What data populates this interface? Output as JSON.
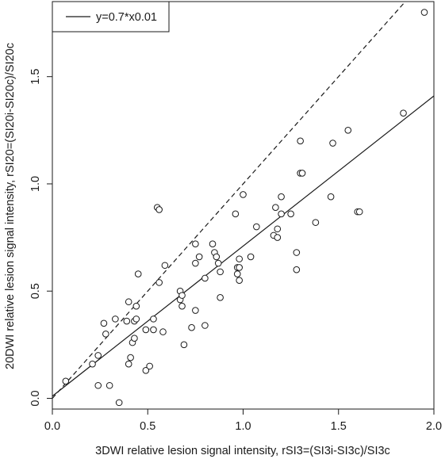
{
  "chart_data": {
    "type": "scatter",
    "title": "",
    "xlabel": "3DWI relative lesion signal intensity, rSI3=(SI3i-SI3c)/SI3c",
    "ylabel": "20DWI relative lesion signal intensity, rSI20=(SI20i-SI20c)/SI20c",
    "xlim": [
      0.0,
      2.0
    ],
    "ylim": [
      -0.05,
      1.85
    ],
    "x_ticks": [
      "0.0",
      "0.5",
      "1.0",
      "1.5",
      "2.0"
    ],
    "y_ticks": [
      "0.0",
      "0.5",
      "1.0",
      "1.5"
    ],
    "grid": false,
    "legend": {
      "placement": "top-left",
      "entries": [
        {
          "label": "y=0.7*x0.01",
          "line_style": "solid"
        }
      ]
    },
    "lines": [
      {
        "style": "solid",
        "slope": 0.7,
        "intercept": 0.01
      },
      {
        "style": "dashed",
        "slope": 1.0,
        "intercept": 0.0
      }
    ],
    "points": [
      {
        "x": 0.07,
        "y": 0.08
      },
      {
        "x": 0.21,
        "y": 0.16
      },
      {
        "x": 0.24,
        "y": 0.2
      },
      {
        "x": 0.24,
        "y": 0.06
      },
      {
        "x": 0.27,
        "y": 0.35
      },
      {
        "x": 0.28,
        "y": 0.3
      },
      {
        "x": 0.3,
        "y": 0.06
      },
      {
        "x": 0.33,
        "y": 0.37
      },
      {
        "x": 0.35,
        "y": -0.02
      },
      {
        "x": 0.39,
        "y": 0.36
      },
      {
        "x": 0.4,
        "y": 0.45
      },
      {
        "x": 0.4,
        "y": 0.16
      },
      {
        "x": 0.41,
        "y": 0.19
      },
      {
        "x": 0.42,
        "y": 0.26
      },
      {
        "x": 0.43,
        "y": 0.28
      },
      {
        "x": 0.43,
        "y": 0.36
      },
      {
        "x": 0.44,
        "y": 0.37
      },
      {
        "x": 0.44,
        "y": 0.43
      },
      {
        "x": 0.45,
        "y": 0.58
      },
      {
        "x": 0.49,
        "y": 0.32
      },
      {
        "x": 0.49,
        "y": 0.13
      },
      {
        "x": 0.51,
        "y": 0.15
      },
      {
        "x": 0.53,
        "y": 0.32
      },
      {
        "x": 0.53,
        "y": 0.37
      },
      {
        "x": 0.55,
        "y": 0.89
      },
      {
        "x": 0.56,
        "y": 0.88
      },
      {
        "x": 0.56,
        "y": 0.54
      },
      {
        "x": 0.58,
        "y": 0.31
      },
      {
        "x": 0.59,
        "y": 0.62
      },
      {
        "x": 0.67,
        "y": 0.46
      },
      {
        "x": 0.67,
        "y": 0.5
      },
      {
        "x": 0.68,
        "y": 0.48
      },
      {
        "x": 0.68,
        "y": 0.43
      },
      {
        "x": 0.69,
        "y": 0.25
      },
      {
        "x": 0.73,
        "y": 0.33
      },
      {
        "x": 0.75,
        "y": 0.41
      },
      {
        "x": 0.75,
        "y": 0.72
      },
      {
        "x": 0.75,
        "y": 0.63
      },
      {
        "x": 0.77,
        "y": 0.66
      },
      {
        "x": 0.8,
        "y": 0.34
      },
      {
        "x": 0.8,
        "y": 0.56
      },
      {
        "x": 0.84,
        "y": 0.72
      },
      {
        "x": 0.85,
        "y": 0.68
      },
      {
        "x": 0.86,
        "y": 0.66
      },
      {
        "x": 0.87,
        "y": 0.63
      },
      {
        "x": 0.88,
        "y": 0.59
      },
      {
        "x": 0.88,
        "y": 0.47
      },
      {
        "x": 0.96,
        "y": 0.86
      },
      {
        "x": 0.97,
        "y": 0.61
      },
      {
        "x": 0.97,
        "y": 0.58
      },
      {
        "x": 0.98,
        "y": 0.65
      },
      {
        "x": 0.98,
        "y": 0.55
      },
      {
        "x": 0.98,
        "y": 0.61
      },
      {
        "x": 1.0,
        "y": 0.95
      },
      {
        "x": 1.04,
        "y": 0.66
      },
      {
        "x": 1.07,
        "y": 0.8
      },
      {
        "x": 1.16,
        "y": 0.76
      },
      {
        "x": 1.17,
        "y": 0.89
      },
      {
        "x": 1.18,
        "y": 0.79
      },
      {
        "x": 1.18,
        "y": 0.75
      },
      {
        "x": 1.2,
        "y": 0.86
      },
      {
        "x": 1.2,
        "y": 0.94
      },
      {
        "x": 1.25,
        "y": 0.86
      },
      {
        "x": 1.28,
        "y": 0.68
      },
      {
        "x": 1.28,
        "y": 0.6
      },
      {
        "x": 1.3,
        "y": 1.05
      },
      {
        "x": 1.31,
        "y": 1.05
      },
      {
        "x": 1.3,
        "y": 1.2
      },
      {
        "x": 1.38,
        "y": 0.82
      },
      {
        "x": 1.46,
        "y": 0.94
      },
      {
        "x": 1.47,
        "y": 1.19
      },
      {
        "x": 1.55,
        "y": 1.25
      },
      {
        "x": 1.6,
        "y": 0.87
      },
      {
        "x": 1.61,
        "y": 0.87
      },
      {
        "x": 1.84,
        "y": 1.33
      },
      {
        "x": 1.95,
        "y": 1.8
      }
    ]
  }
}
